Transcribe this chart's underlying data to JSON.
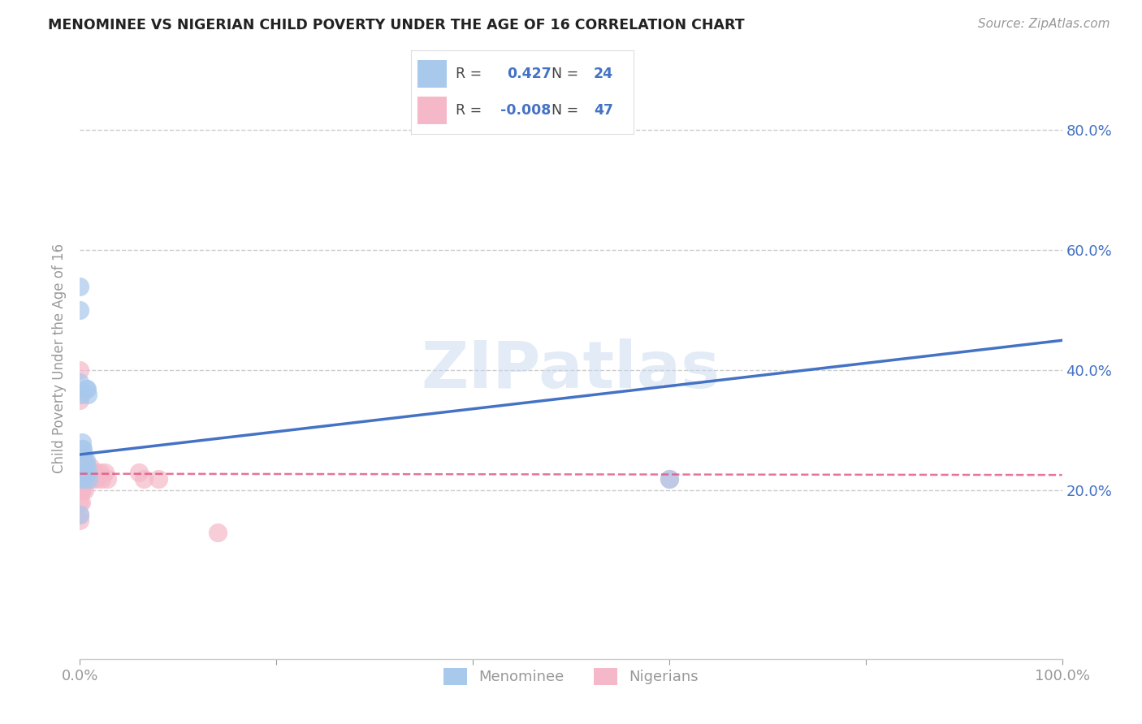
{
  "title": "MENOMINEE VS NIGERIAN CHILD POVERTY UNDER THE AGE OF 16 CORRELATION CHART",
  "source": "Source: ZipAtlas.com",
  "ylabel": "Child Poverty Under the Age of 16",
  "watermark": "ZIPatlas",
  "legend_r_menominee": "0.427",
  "legend_n_menominee": "24",
  "legend_r_nigerian": "-0.008",
  "legend_n_nigerian": "47",
  "menominee_x": [
    0.0,
    0.0,
    0.0,
    0.001,
    0.001,
    0.001,
    0.002,
    0.002,
    0.003,
    0.003,
    0.004,
    0.004,
    0.005,
    0.005,
    0.006,
    0.007,
    0.008,
    0.0,
    0.001,
    0.006,
    0.007,
    0.008,
    0.009,
    0.6
  ],
  "menominee_y": [
    0.54,
    0.5,
    0.38,
    0.36,
    0.25,
    0.26,
    0.27,
    0.28,
    0.27,
    0.26,
    0.25,
    0.24,
    0.23,
    0.22,
    0.25,
    0.24,
    0.23,
    0.16,
    0.22,
    0.37,
    0.37,
    0.36,
    0.22,
    0.22
  ],
  "nigerian_x": [
    0.0,
    0.0,
    0.0,
    0.0,
    0.0,
    0.0,
    0.0,
    0.001,
    0.001,
    0.001,
    0.001,
    0.001,
    0.001,
    0.002,
    0.002,
    0.002,
    0.002,
    0.003,
    0.003,
    0.003,
    0.004,
    0.004,
    0.005,
    0.005,
    0.006,
    0.006,
    0.007,
    0.007,
    0.008,
    0.008,
    0.009,
    0.01,
    0.01,
    0.011,
    0.012,
    0.013,
    0.015,
    0.017,
    0.02,
    0.022,
    0.025,
    0.028,
    0.06,
    0.065,
    0.08,
    0.14,
    0.6
  ],
  "nigerian_y": [
    0.2,
    0.22,
    0.18,
    0.35,
    0.4,
    0.15,
    0.16,
    0.2,
    0.22,
    0.18,
    0.2,
    0.24,
    0.22,
    0.23,
    0.2,
    0.22,
    0.24,
    0.25,
    0.22,
    0.23,
    0.24,
    0.22,
    0.25,
    0.2,
    0.23,
    0.22,
    0.24,
    0.22,
    0.23,
    0.22,
    0.22,
    0.23,
    0.24,
    0.22,
    0.23,
    0.22,
    0.23,
    0.22,
    0.23,
    0.22,
    0.23,
    0.22,
    0.23,
    0.22,
    0.22,
    0.13,
    0.22
  ],
  "blue_color": "#A8C8EC",
  "pink_color": "#F4B8C8",
  "blue_line_color": "#4472C4",
  "pink_line_color": "#E05080",
  "title_color": "#333333",
  "axis_color": "#999999",
  "grid_color": "#CCCCCC",
  "legend_text_color": "#4472C4",
  "background_color": "#FFFFFF",
  "xlim": [
    0,
    1.0
  ],
  "ylim": [
    -0.08,
    0.92
  ],
  "xticks": [
    0.0,
    0.2,
    0.4,
    0.6,
    0.8,
    1.0
  ],
  "xtick_labels": [
    "0.0%",
    "",
    "",
    "",
    "",
    "100.0%"
  ],
  "yticks": [
    0.2,
    0.4,
    0.6,
    0.8
  ],
  "ytick_labels": [
    "20.0%",
    "40.0%",
    "60.0%",
    "80.0%"
  ],
  "blue_line_x0": 0.0,
  "blue_line_y0": 0.26,
  "blue_line_x1": 1.0,
  "blue_line_y1": 0.45,
  "pink_line_x0": 0.0,
  "pink_line_y0": 0.228,
  "pink_line_x1": 1.0,
  "pink_line_y1": 0.226
}
